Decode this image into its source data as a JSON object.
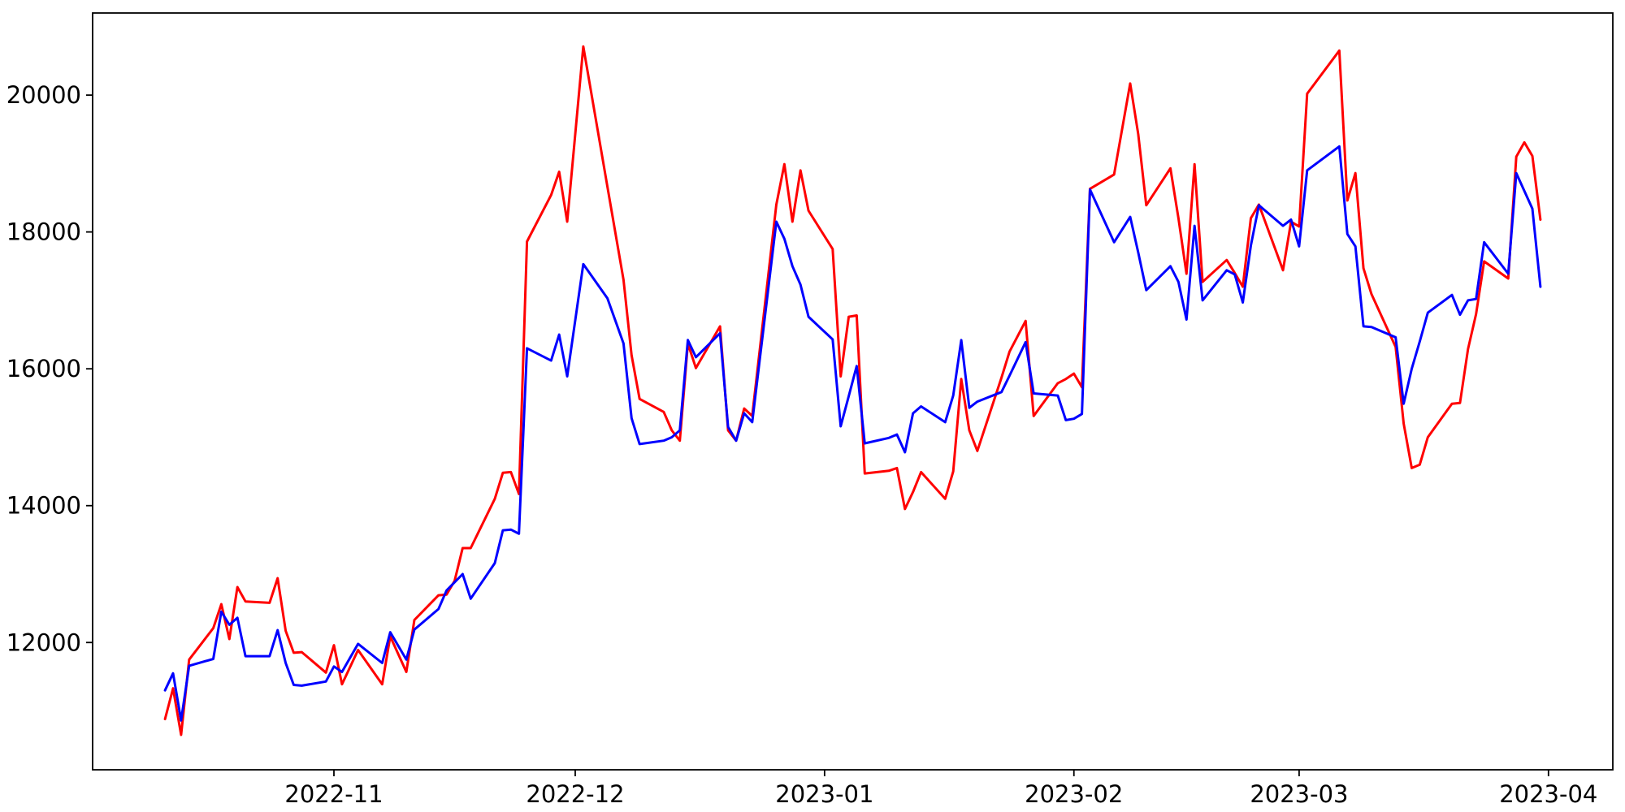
{
  "figure": {
    "background": "#ffffff",
    "title": "",
    "legend": "none"
  },
  "chart_data": {
    "type": "line",
    "xlabel": "",
    "ylabel": "",
    "grid": false,
    "x": [
      "2022-10-11",
      "2022-10-12",
      "2022-10-13",
      "2022-10-14",
      "2022-10-17",
      "2022-10-18",
      "2022-10-19",
      "2022-10-20",
      "2022-10-21",
      "2022-10-24",
      "2022-10-25",
      "2022-10-26",
      "2022-10-27",
      "2022-10-28",
      "2022-10-31",
      "2022-11-01",
      "2022-11-02",
      "2022-11-04",
      "2022-11-07",
      "2022-11-08",
      "2022-11-10",
      "2022-11-11",
      "2022-11-14",
      "2022-11-15",
      "2022-11-16",
      "2022-11-17",
      "2022-11-18",
      "2022-11-21",
      "2022-11-22",
      "2022-11-23",
      "2022-11-24",
      "2022-11-25",
      "2022-11-28",
      "2022-11-29",
      "2022-11-30",
      "2022-12-02",
      "2022-12-05",
      "2022-12-07",
      "2022-12-08",
      "2022-12-09",
      "2022-12-12",
      "2022-12-13",
      "2022-12-14",
      "2022-12-15",
      "2022-12-16",
      "2022-12-19",
      "2022-12-20",
      "2022-12-21",
      "2022-12-22",
      "2022-12-23",
      "2022-12-26",
      "2022-12-27",
      "2022-12-28",
      "2022-12-29",
      "2022-12-30",
      "2023-01-02",
      "2023-01-03",
      "2023-01-04",
      "2023-01-05",
      "2023-01-06",
      "2023-01-09",
      "2023-01-10",
      "2023-01-11",
      "2023-01-12",
      "2023-01-13",
      "2023-01-16",
      "2023-01-17",
      "2023-01-18",
      "2023-01-19",
      "2023-01-20",
      "2023-01-23",
      "2023-01-24",
      "2023-01-26",
      "2023-01-27",
      "2023-01-30",
      "2023-01-31",
      "2023-02-01",
      "2023-02-02",
      "2023-02-03",
      "2023-02-06",
      "2023-02-08",
      "2023-02-09",
      "2023-02-10",
      "2023-02-13",
      "2023-02-14",
      "2023-02-15",
      "2023-02-16",
      "2023-02-17",
      "2023-02-20",
      "2023-02-21",
      "2023-02-22",
      "2023-02-23",
      "2023-02-24",
      "2023-02-27",
      "2023-02-28",
      "2023-03-01",
      "2023-03-02",
      "2023-03-06",
      "2023-03-07",
      "2023-03-08",
      "2023-03-09",
      "2023-03-10",
      "2023-03-13",
      "2023-03-14",
      "2023-03-15",
      "2023-03-16",
      "2023-03-17",
      "2023-03-20",
      "2023-03-21",
      "2023-03-22",
      "2023-03-23",
      "2023-03-24",
      "2023-03-27",
      "2023-03-28",
      "2023-03-29",
      "2023-03-30",
      "2023-03-31"
    ],
    "series": [
      {
        "name": "red-series",
        "color": "#ff0000",
        "values": [
          10880,
          11330,
          10650,
          11750,
          12210,
          12560,
          12050,
          12810,
          12600,
          12580,
          12940,
          12170,
          11850,
          11860,
          11560,
          11960,
          11390,
          11890,
          11390,
          12090,
          11570,
          12330,
          12690,
          12700,
          12900,
          13380,
          13380,
          14100,
          14480,
          14490,
          14170,
          17860,
          18540,
          18880,
          18150,
          20710,
          18660,
          17300,
          16200,
          15560,
          15370,
          15100,
          14950,
          16370,
          16010,
          16620,
          15100,
          14950,
          15420,
          15310,
          18400,
          18990,
          18150,
          18900,
          18310,
          17750,
          15890,
          16760,
          16780,
          14470,
          14510,
          14550,
          13950,
          14200,
          14490,
          14100,
          14500,
          15850,
          15100,
          14800,
          15870,
          16250,
          16700,
          15310,
          15790,
          15850,
          15930,
          15730,
          18630,
          18840,
          20170,
          19430,
          18390,
          18930,
          18200,
          17390,
          18990,
          17270,
          17590,
          17400,
          17200,
          18200,
          18400,
          17440,
          18150,
          18080,
          20020,
          20650,
          18460,
          18860,
          17470,
          17090,
          16320,
          15200,
          14550,
          14600,
          15000,
          15490,
          15500,
          16290,
          16800,
          17570,
          17320,
          19100,
          19310,
          19110,
          18180
        ]
      },
      {
        "name": "blue-series",
        "color": "#0000ff",
        "values": [
          11300,
          11550,
          10860,
          11660,
          11760,
          12450,
          12260,
          12360,
          11800,
          11800,
          12180,
          11700,
          11380,
          11370,
          11430,
          11650,
          11570,
          11980,
          11700,
          12150,
          11750,
          12190,
          12490,
          12760,
          12880,
          13000,
          12640,
          13160,
          13640,
          13650,
          13590,
          16300,
          16120,
          16500,
          15890,
          17530,
          17030,
          16370,
          15280,
          14900,
          14950,
          15000,
          15100,
          16420,
          16170,
          16520,
          15150,
          14950,
          15350,
          15220,
          18150,
          17900,
          17500,
          17230,
          16760,
          16430,
          15160,
          15600,
          16040,
          14910,
          14990,
          15040,
          14780,
          15350,
          15450,
          15220,
          15610,
          16420,
          15430,
          15520,
          15660,
          15900,
          16390,
          15640,
          15610,
          15250,
          15270,
          15340,
          18620,
          17850,
          18220,
          17700,
          17150,
          17500,
          17270,
          16720,
          18090,
          17000,
          17440,
          17380,
          16970,
          17800,
          18390,
          18090,
          18180,
          17790,
          18900,
          19250,
          17970,
          17790,
          16620,
          16610,
          16460,
          15490,
          16000,
          16400,
          16820,
          17080,
          16790,
          17000,
          17020,
          17850,
          17390,
          18860,
          18600,
          18340,
          17200
        ]
      }
    ],
    "x_ticks": [
      {
        "label": "2022-11",
        "date": "2022-11-01"
      },
      {
        "label": "2022-12",
        "date": "2022-12-01"
      },
      {
        "label": "2023-01",
        "date": "2023-01-01"
      },
      {
        "label": "2023-02",
        "date": "2023-02-01"
      },
      {
        "label": "2023-03",
        "date": "2023-03-01"
      },
      {
        "label": "2023-04",
        "date": "2023-04-01"
      }
    ],
    "y_ticks": [
      12000,
      14000,
      16000,
      18000,
      20000
    ],
    "xlim": [
      "2022-10-02",
      "2023-04-09"
    ],
    "ylim": [
      10140,
      21200
    ],
    "axis_color": "#000000"
  }
}
